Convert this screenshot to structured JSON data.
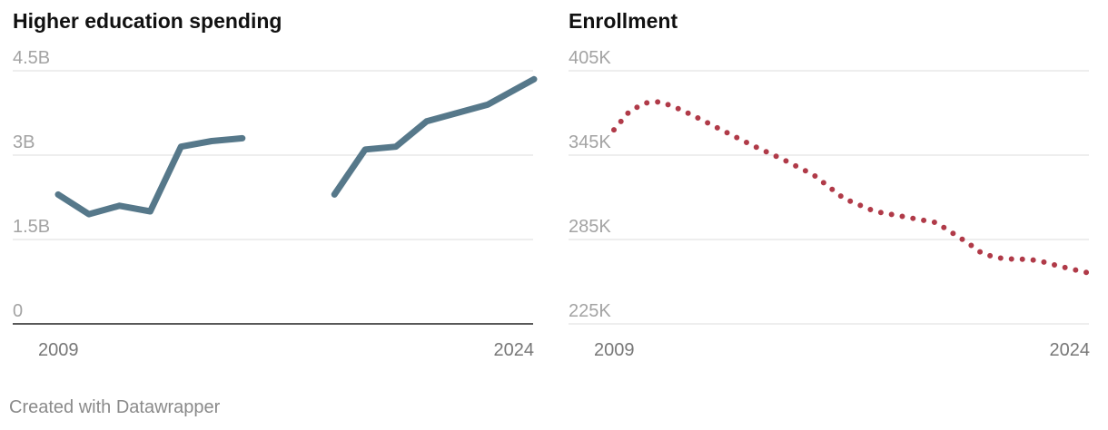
{
  "footer": {
    "credit": "Created with Datawrapper"
  },
  "chart_data": [
    {
      "type": "line",
      "title": "Higher education spending",
      "xlabel": "",
      "ylabel": "",
      "x_ticks": [
        "2009",
        "2024"
      ],
      "y_ticks": [
        "4.5B",
        "3B",
        "1.5B",
        "0"
      ],
      "ylim": [
        0,
        4.5
      ],
      "unit": "B",
      "xlim": [
        2008.5,
        2024
      ],
      "grid": true,
      "series": [
        {
          "color": "#56788a",
          "style": "solid",
          "x": [
            2008.5,
            2009.5,
            2010.5,
            2011.5,
            2012.5,
            2013.5,
            2014.5,
            2015.5,
            2016.5,
            2017.5,
            2018.5,
            2019.5,
            2020.5,
            2021.5,
            2022.5,
            2023.5,
            2024
          ],
          "y": [
            2.3,
            1.95,
            2.1,
            2.0,
            3.15,
            3.25,
            3.3,
            null,
            null,
            2.3,
            3.1,
            3.15,
            3.6,
            3.75,
            3.9,
            4.2,
            4.35
          ]
        }
      ]
    },
    {
      "type": "line",
      "title": "Enrollment",
      "xlabel": "",
      "ylabel": "",
      "x_ticks": [
        "2009",
        "2024"
      ],
      "y_ticks": [
        "405K",
        "345K",
        "285K",
        "225K"
      ],
      "ylim": [
        225,
        405
      ],
      "unit": "K",
      "xlim": [
        2008.5,
        2024
      ],
      "grid": true,
      "series": [
        {
          "color": "#b03a48",
          "style": "dotted",
          "x": [
            2008.5,
            2009.0,
            2009.5,
            2010.0,
            2010.5,
            2011.0,
            2012.0,
            2013.0,
            2014.0,
            2015.0,
            2016.0,
            2017.0,
            2018.0,
            2019.0,
            2020.0,
            2020.5,
            2021.0,
            2021.5,
            2022.0,
            2022.5,
            2023.0,
            2024.0
          ],
          "y": [
            363,
            376,
            382,
            383,
            379,
            374,
            363,
            352,
            342,
            331,
            314,
            305,
            301,
            297,
            283,
            275,
            272,
            271,
            271,
            269,
            266,
            261
          ]
        }
      ]
    }
  ]
}
